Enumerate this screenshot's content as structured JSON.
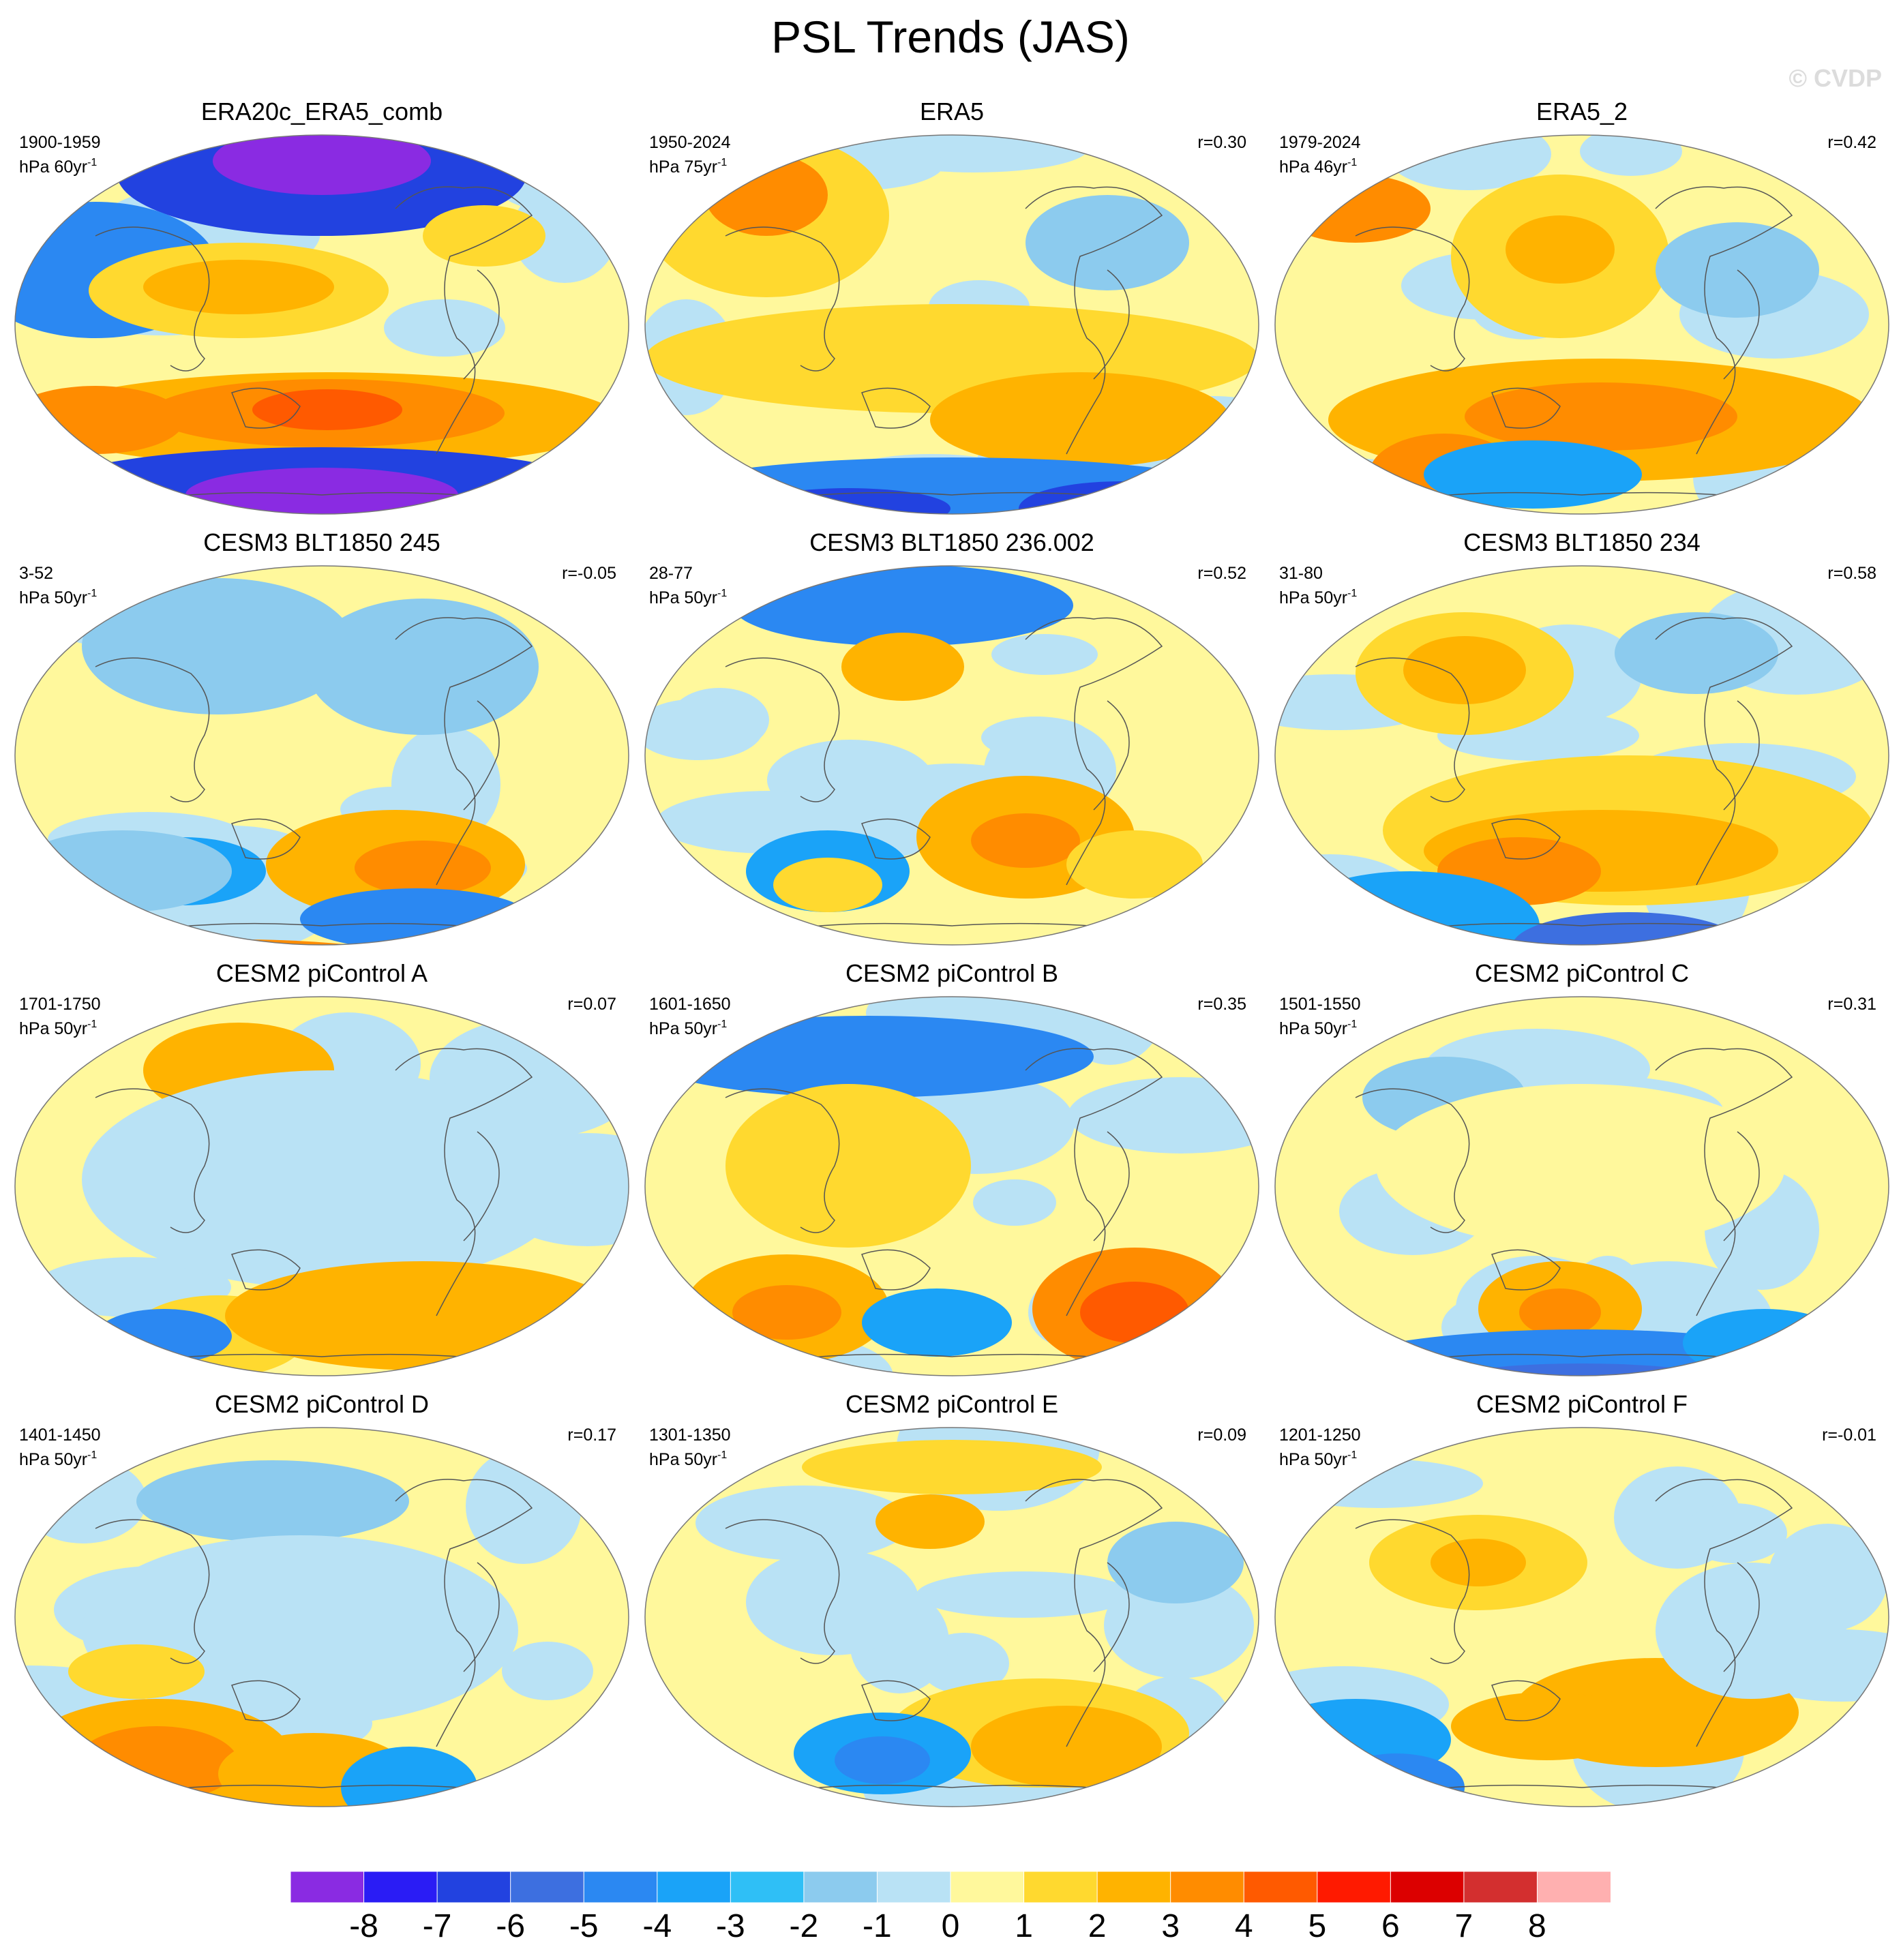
{
  "title": "PSL Trends (JAS)",
  "watermark": "© CVDP",
  "colorbar": {
    "colors": [
      "#8a2be2",
      "#2a1cf5",
      "#2242e0",
      "#3d6fe0",
      "#2b88f2",
      "#1aa3f8",
      "#2fbff6",
      "#8ccbee",
      "#b9e2f5",
      "#fff89c",
      "#ffd92f",
      "#ffb300",
      "#ff8c00",
      "#ff5a00",
      "#ff1a00",
      "#dc0000",
      "#d32f2f",
      "#ffb0b0"
    ],
    "labels": [
      "-8",
      "-7",
      "-6",
      "-5",
      "-4",
      "-3",
      "-2",
      "-1",
      "0",
      "1",
      "2",
      "3",
      "4",
      "5",
      "6",
      "7",
      "8"
    ]
  },
  "panels": [
    {
      "title": "ERA20c_ERA5_comb",
      "period": "1900-1959",
      "units": "hPa 60yr",
      "units_exp": "-1",
      "r": ""
    },
    {
      "title": "ERA5",
      "period": "1950-2024",
      "units": "hPa 75yr",
      "units_exp": "-1",
      "r": "r=0.30"
    },
    {
      "title": "ERA5_2",
      "period": "1979-2024",
      "units": "hPa 46yr",
      "units_exp": "-1",
      "r": "r=0.42"
    },
    {
      "title": "CESM3 BLT1850 245",
      "period": "3-52",
      "units": "hPa 50yr",
      "units_exp": "-1",
      "r": "r=-0.05"
    },
    {
      "title": "CESM3 BLT1850 236.002",
      "period": "28-77",
      "units": "hPa 50yr",
      "units_exp": "-1",
      "r": "r=0.52"
    },
    {
      "title": "CESM3 BLT1850 234",
      "period": "31-80",
      "units": "hPa 50yr",
      "units_exp": "-1",
      "r": "r=0.58"
    },
    {
      "title": "CESM2 piControl A",
      "period": "1701-1750",
      "units": "hPa 50yr",
      "units_exp": "-1",
      "r": "r=0.07"
    },
    {
      "title": "CESM2 piControl B",
      "period": "1601-1650",
      "units": "hPa 50yr",
      "units_exp": "-1",
      "r": "r=0.35"
    },
    {
      "title": "CESM2 piControl C",
      "period": "1501-1550",
      "units": "hPa 50yr",
      "units_exp": "-1",
      "r": "r=0.31"
    },
    {
      "title": "CESM2 piControl D",
      "period": "1401-1450",
      "units": "hPa 50yr",
      "units_exp": "-1",
      "r": "r=0.17"
    },
    {
      "title": "CESM2 piControl E",
      "period": "1301-1350",
      "units": "hPa 50yr",
      "units_exp": "-1",
      "r": "r=0.09"
    },
    {
      "title": "CESM2 piControl F",
      "period": "1201-1250",
      "units": "hPa 50yr",
      "units_exp": "-1",
      "r": "r=-0.01"
    }
  ]
}
